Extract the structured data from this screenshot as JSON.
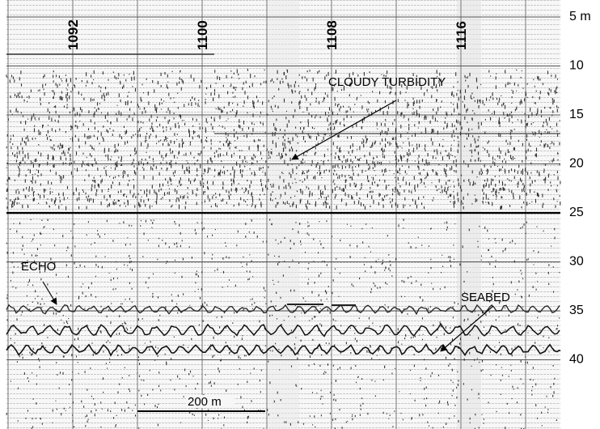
{
  "fix_marks": [
    "1092",
    "1100",
    "1108",
    "1116"
  ],
  "depth_labels": [
    "5 m",
    "10",
    "15",
    "20",
    "25",
    "30",
    "35",
    "40"
  ],
  "annotations": [
    "CLOUDY TURBIDITY",
    "ECHO",
    "SEABED"
  ],
  "scale_bar": "200 m"
}
